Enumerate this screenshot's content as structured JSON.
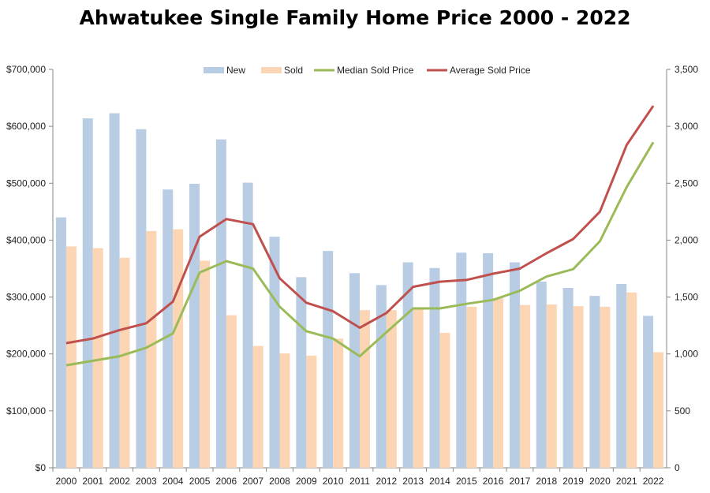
{
  "chart_data": {
    "type": "bar",
    "title": "Ahwatukee Single Family Home Price 2000 - 2022",
    "categories": [
      "2000",
      "2001",
      "2002",
      "2003",
      "2004",
      "2005",
      "2006",
      "2007",
      "2008",
      "2009",
      "2010",
      "2011",
      "2012",
      "2013",
      "2014",
      "2015",
      "2016",
      "2017",
      "2018",
      "2019",
      "2020",
      "2021",
      "2022"
    ],
    "left_axis": {
      "min": 0,
      "max": 700000,
      "ticks": [
        "$0",
        "$100,000",
        "$200,000",
        "$300,000",
        "$400,000",
        "$500,000",
        "$600,000",
        "$700,000"
      ]
    },
    "right_axis": {
      "min": 0,
      "max": 3500,
      "ticks": [
        "0",
        "500",
        "1,000",
        "1,500",
        "2,000",
        "2,500",
        "3,000",
        "3,500"
      ]
    },
    "legend_position": "top",
    "series": [
      {
        "name": "New",
        "type": "bar",
        "axis": "right",
        "color": "#b8cce4",
        "values": [
          2200,
          3070,
          3115,
          2975,
          2445,
          2495,
          2885,
          2505,
          2030,
          1675,
          1905,
          1710,
          1605,
          1805,
          1755,
          1890,
          1885,
          1805,
          1635,
          1580,
          1510,
          1615,
          1335
        ]
      },
      {
        "name": "Sold",
        "type": "bar",
        "axis": "right",
        "color": "#fcd5b5",
        "values": [
          1945,
          1930,
          1845,
          2080,
          2095,
          1820,
          1340,
          1070,
          1005,
          985,
          1135,
          1385,
          1385,
          1410,
          1185,
          1415,
          1490,
          1430,
          1435,
          1420,
          1415,
          1540,
          1015
        ]
      },
      {
        "name": "Median Sold Price",
        "type": "line",
        "axis": "left",
        "color": "#9bbb59",
        "values": [
          180000,
          188000,
          196000,
          211000,
          236000,
          343000,
          363000,
          350000,
          283000,
          240000,
          227000,
          196000,
          238000,
          280000,
          280000,
          288000,
          295000,
          311000,
          336000,
          349000,
          398000,
          493000,
          572000
        ]
      },
      {
        "name": "Average Sold Price",
        "type": "line",
        "axis": "left",
        "color": "#c0504d",
        "values": [
          219000,
          227000,
          242000,
          254000,
          292000,
          406000,
          437000,
          428000,
          333000,
          290000,
          275000,
          246000,
          272000,
          318000,
          327000,
          330000,
          341000,
          350000,
          377000,
          402000,
          450000,
          567000,
          636000
        ]
      }
    ]
  }
}
